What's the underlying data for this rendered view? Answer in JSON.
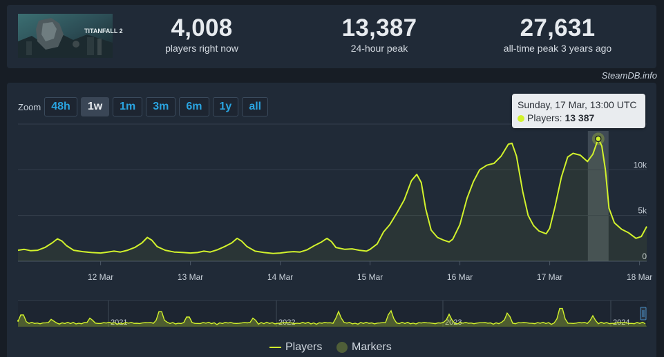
{
  "header": {
    "game_title_art": "TITANFALL 2",
    "stats": [
      {
        "value": "4,008",
        "label": "players right now"
      },
      {
        "value": "13,387",
        "label": "24-hour peak"
      },
      {
        "value": "27,631",
        "label": "all-time peak 3 years ago"
      }
    ],
    "credit": "SteamDB.info"
  },
  "zoom": {
    "label": "Zoom",
    "buttons": [
      "48h",
      "1w",
      "1m",
      "3m",
      "6m",
      "1y",
      "all"
    ],
    "active": "1w"
  },
  "tooltip": {
    "date": "Sunday, 17 Mar, 13:00 UTC",
    "series": "Players:",
    "value": "13 387"
  },
  "legend": {
    "players": "Players",
    "markers": "Markers"
  },
  "colors": {
    "series": "#d2f22c",
    "background": "#171d25",
    "panel": "#202a37",
    "accent": "#2aa4e0"
  },
  "chart_data": {
    "type": "line",
    "x_unit": "day of March 2024 (fractional)",
    "x_ticks": [
      "12 Mar",
      "13 Mar",
      "14 Mar",
      "15 Mar",
      "16 Mar",
      "17 Mar",
      "18 Mar"
    ],
    "y_ticks": [
      "0",
      "5k",
      "10k"
    ],
    "ylim": [
      0,
      15000
    ],
    "xlim": [
      11.08,
      18.08
    ],
    "highlight": {
      "x": 17.54,
      "y": 13387
    },
    "series": [
      {
        "name": "Players",
        "points": [
          [
            11.08,
            1200
          ],
          [
            11.15,
            1300
          ],
          [
            11.22,
            1150
          ],
          [
            11.3,
            1200
          ],
          [
            11.38,
            1500
          ],
          [
            11.46,
            2000
          ],
          [
            11.52,
            2450
          ],
          [
            11.57,
            2200
          ],
          [
            11.62,
            1700
          ],
          [
            11.7,
            1200
          ],
          [
            11.8,
            1050
          ],
          [
            11.9,
            950
          ],
          [
            12.0,
            900
          ],
          [
            12.08,
            1000
          ],
          [
            12.15,
            1100
          ],
          [
            12.22,
            1000
          ],
          [
            12.3,
            1200
          ],
          [
            12.38,
            1500
          ],
          [
            12.46,
            2000
          ],
          [
            12.52,
            2600
          ],
          [
            12.57,
            2300
          ],
          [
            12.63,
            1600
          ],
          [
            12.72,
            1200
          ],
          [
            12.82,
            1000
          ],
          [
            12.92,
            950
          ],
          [
            13.0,
            900
          ],
          [
            13.08,
            950
          ],
          [
            13.15,
            1100
          ],
          [
            13.22,
            1000
          ],
          [
            13.3,
            1250
          ],
          [
            13.38,
            1600
          ],
          [
            13.46,
            2000
          ],
          [
            13.52,
            2500
          ],
          [
            13.57,
            2200
          ],
          [
            13.63,
            1600
          ],
          [
            13.72,
            1100
          ],
          [
            13.82,
            950
          ],
          [
            13.92,
            850
          ],
          [
            14.0,
            900
          ],
          [
            14.08,
            1000
          ],
          [
            14.15,
            1050
          ],
          [
            14.22,
            1000
          ],
          [
            14.3,
            1250
          ],
          [
            14.38,
            1700
          ],
          [
            14.46,
            2100
          ],
          [
            14.52,
            2500
          ],
          [
            14.57,
            2150
          ],
          [
            14.62,
            1500
          ],
          [
            14.72,
            1300
          ],
          [
            14.8,
            1350
          ],
          [
            14.88,
            1200
          ],
          [
            14.96,
            1100
          ],
          [
            15.0,
            1300
          ],
          [
            15.08,
            1900
          ],
          [
            15.15,
            3200
          ],
          [
            15.22,
            4000
          ],
          [
            15.3,
            5300
          ],
          [
            15.38,
            6700
          ],
          [
            15.46,
            8800
          ],
          [
            15.52,
            9500
          ],
          [
            15.57,
            8600
          ],
          [
            15.62,
            5700
          ],
          [
            15.68,
            3400
          ],
          [
            15.75,
            2600
          ],
          [
            15.82,
            2300
          ],
          [
            15.88,
            2100
          ],
          [
            15.92,
            2400
          ],
          [
            16.0,
            4000
          ],
          [
            16.08,
            6900
          ],
          [
            16.15,
            8700
          ],
          [
            16.22,
            10000
          ],
          [
            16.3,
            10500
          ],
          [
            16.38,
            10700
          ],
          [
            16.46,
            11500
          ],
          [
            16.54,
            12800
          ],
          [
            16.58,
            12900
          ],
          [
            16.63,
            11500
          ],
          [
            16.7,
            7600
          ],
          [
            16.76,
            5000
          ],
          [
            16.82,
            3900
          ],
          [
            16.88,
            3300
          ],
          [
            16.96,
            3000
          ],
          [
            17.0,
            3600
          ],
          [
            17.06,
            6000
          ],
          [
            17.13,
            9200
          ],
          [
            17.2,
            11400
          ],
          [
            17.26,
            11800
          ],
          [
            17.34,
            11600
          ],
          [
            17.42,
            10900
          ],
          [
            17.48,
            11700
          ],
          [
            17.54,
            13387
          ],
          [
            17.58,
            12600
          ],
          [
            17.62,
            10000
          ],
          [
            17.66,
            5800
          ],
          [
            17.72,
            4200
          ],
          [
            17.8,
            3500
          ],
          [
            17.88,
            3100
          ],
          [
            17.96,
            2500
          ],
          [
            18.02,
            2700
          ],
          [
            18.08,
            3800
          ]
        ]
      }
    ],
    "navigator": {
      "years": [
        "2021",
        "2022",
        "2023",
        "2024"
      ]
    }
  }
}
